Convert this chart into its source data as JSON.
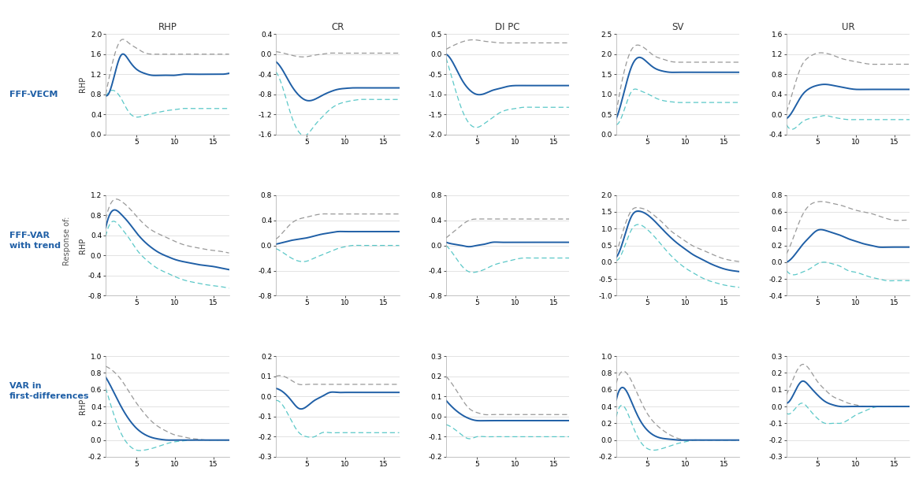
{
  "col_headers": [
    "RHP",
    "CR",
    "DI PC",
    "SV",
    "UR"
  ],
  "colors": {
    "blue": "#1f5fa6",
    "gray_dashed": "#999999",
    "cyan_dashed": "#5bc8c8"
  },
  "panels": {
    "r0c0": {
      "ylim": [
        0.0,
        2.0
      ],
      "yticks": [
        0.0,
        0.4,
        0.8,
        1.2,
        1.6,
        2.0
      ],
      "blue": [
        0.78,
        1.1,
        1.58,
        1.48,
        1.3,
        1.22,
        1.18,
        1.18,
        1.18,
        1.18,
        1.2,
        1.2,
        1.2,
        1.2,
        1.2,
        1.2,
        1.22
      ],
      "upper": [
        0.8,
        1.5,
        1.88,
        1.82,
        1.72,
        1.63,
        1.6,
        1.6,
        1.6,
        1.6,
        1.6,
        1.6,
        1.6,
        1.6,
        1.6,
        1.6,
        1.6
      ],
      "lower": [
        0.75,
        0.88,
        0.72,
        0.45,
        0.35,
        0.38,
        0.42,
        0.45,
        0.48,
        0.5,
        0.52,
        0.52,
        0.52,
        0.52,
        0.52,
        0.52,
        0.52
      ]
    },
    "r0c1": {
      "ylim": [
        -1.6,
        0.4
      ],
      "yticks": [
        -1.6,
        -1.2,
        -0.8,
        -0.4,
        0.0,
        0.4
      ],
      "blue": [
        -0.15,
        -0.35,
        -0.62,
        -0.82,
        -0.92,
        -0.9,
        -0.82,
        -0.75,
        -0.7,
        -0.68,
        -0.67,
        -0.67,
        -0.67,
        -0.67,
        -0.67,
        -0.67,
        -0.67
      ],
      "upper": [
        0.05,
        0.02,
        -0.02,
        -0.05,
        -0.05,
        -0.02,
        0.0,
        0.02,
        0.02,
        0.02,
        0.02,
        0.02,
        0.02,
        0.02,
        0.02,
        0.02,
        0.02
      ],
      "lower": [
        -0.35,
        -0.72,
        -1.22,
        -1.55,
        -1.6,
        -1.42,
        -1.25,
        -1.1,
        -1.0,
        -0.95,
        -0.92,
        -0.9,
        -0.9,
        -0.9,
        -0.9,
        -0.9,
        -0.9
      ]
    },
    "r0c2": {
      "ylim": [
        -2.0,
        0.5
      ],
      "yticks": [
        -2.0,
        -1.5,
        -1.0,
        -0.5,
        0.0,
        0.5
      ],
      "blue": [
        0.0,
        -0.25,
        -0.62,
        -0.88,
        -1.0,
        -0.98,
        -0.9,
        -0.85,
        -0.8,
        -0.78,
        -0.78,
        -0.78,
        -0.78,
        -0.78,
        -0.78,
        -0.78,
        -0.78
      ],
      "upper": [
        0.12,
        0.22,
        0.3,
        0.35,
        0.35,
        0.32,
        0.3,
        0.28,
        0.28,
        0.28,
        0.28,
        0.28,
        0.28,
        0.28,
        0.28,
        0.28,
        0.28
      ],
      "lower": [
        -0.1,
        -0.75,
        -1.35,
        -1.72,
        -1.82,
        -1.72,
        -1.58,
        -1.45,
        -1.38,
        -1.35,
        -1.32,
        -1.32,
        -1.32,
        -1.32,
        -1.32,
        -1.32,
        -1.32
      ]
    },
    "r0c3": {
      "ylim": [
        0.0,
        2.5
      ],
      "yticks": [
        0.0,
        0.5,
        1.0,
        1.5,
        2.0,
        2.5
      ],
      "blue": [
        0.4,
        1.05,
        1.7,
        1.92,
        1.8,
        1.65,
        1.58,
        1.55,
        1.55,
        1.55,
        1.55,
        1.55,
        1.55,
        1.55,
        1.55,
        1.55,
        1.55
      ],
      "upper": [
        0.55,
        1.55,
        2.12,
        2.22,
        2.1,
        1.95,
        1.88,
        1.82,
        1.8,
        1.8,
        1.8,
        1.8,
        1.8,
        1.8,
        1.8,
        1.8,
        1.8
      ],
      "lower": [
        0.25,
        0.6,
        1.08,
        1.1,
        1.02,
        0.92,
        0.85,
        0.82,
        0.8,
        0.8,
        0.8,
        0.8,
        0.8,
        0.8,
        0.8,
        0.8,
        0.8
      ]
    },
    "r0c4": {
      "ylim": [
        -0.4,
        1.6
      ],
      "yticks": [
        -0.4,
        0.0,
        0.4,
        0.8,
        1.2,
        1.6
      ],
      "blue": [
        -0.08,
        0.12,
        0.38,
        0.52,
        0.58,
        0.6,
        0.58,
        0.55,
        0.52,
        0.5,
        0.5,
        0.5,
        0.5,
        0.5,
        0.5,
        0.5,
        0.5
      ],
      "upper": [
        0.05,
        0.55,
        0.98,
        1.15,
        1.22,
        1.22,
        1.18,
        1.12,
        1.08,
        1.05,
        1.02,
        1.0,
        1.0,
        1.0,
        1.0,
        1.0,
        1.0
      ],
      "lower": [
        -0.2,
        -0.28,
        -0.15,
        -0.08,
        -0.05,
        -0.02,
        -0.05,
        -0.08,
        -0.1,
        -0.1,
        -0.1,
        -0.1,
        -0.1,
        -0.1,
        -0.1,
        -0.1,
        -0.1
      ]
    },
    "r1c0": {
      "ylim": [
        -0.8,
        1.2
      ],
      "yticks": [
        -0.8,
        -0.4,
        0.0,
        0.4,
        0.8,
        1.2
      ],
      "blue": [
        0.55,
        0.9,
        0.82,
        0.65,
        0.45,
        0.28,
        0.15,
        0.05,
        -0.02,
        -0.08,
        -0.12,
        -0.15,
        -0.18,
        -0.2,
        -0.22,
        -0.25,
        -0.28
      ],
      "upper": [
        0.72,
        1.1,
        1.08,
        0.95,
        0.78,
        0.62,
        0.5,
        0.42,
        0.35,
        0.28,
        0.22,
        0.18,
        0.15,
        0.12,
        0.1,
        0.08,
        0.05
      ],
      "lower": [
        0.38,
        0.68,
        0.55,
        0.35,
        0.12,
        -0.05,
        -0.18,
        -0.28,
        -0.35,
        -0.42,
        -0.48,
        -0.52,
        -0.55,
        -0.58,
        -0.6,
        -0.62,
        -0.65
      ]
    },
    "r1c1": {
      "ylim": [
        -0.8,
        0.8
      ],
      "yticks": [
        -0.8,
        -0.4,
        0.0,
        0.4,
        0.8
      ],
      "blue": [
        0.02,
        0.05,
        0.08,
        0.1,
        0.12,
        0.15,
        0.18,
        0.2,
        0.22,
        0.22,
        0.22,
        0.22,
        0.22,
        0.22,
        0.22,
        0.22,
        0.22
      ],
      "upper": [
        0.1,
        0.22,
        0.35,
        0.42,
        0.45,
        0.48,
        0.5,
        0.5,
        0.5,
        0.5,
        0.5,
        0.5,
        0.5,
        0.5,
        0.5,
        0.5,
        0.5
      ],
      "lower": [
        -0.05,
        -0.12,
        -0.2,
        -0.25,
        -0.25,
        -0.2,
        -0.15,
        -0.1,
        -0.05,
        -0.02,
        0.0,
        0.0,
        0.0,
        0.0,
        0.0,
        0.0,
        0.0
      ]
    },
    "r1c2": {
      "ylim": [
        -0.8,
        0.8
      ],
      "yticks": [
        -0.8,
        -0.4,
        0.0,
        0.4,
        0.8
      ],
      "blue": [
        0.05,
        0.02,
        0.0,
        -0.02,
        0.0,
        0.02,
        0.05,
        0.05,
        0.05,
        0.05,
        0.05,
        0.05,
        0.05,
        0.05,
        0.05,
        0.05,
        0.05
      ],
      "upper": [
        0.12,
        0.22,
        0.32,
        0.4,
        0.42,
        0.42,
        0.42,
        0.42,
        0.42,
        0.42,
        0.42,
        0.42,
        0.42,
        0.42,
        0.42,
        0.42,
        0.42
      ],
      "lower": [
        0.0,
        -0.15,
        -0.32,
        -0.42,
        -0.42,
        -0.38,
        -0.32,
        -0.28,
        -0.25,
        -0.22,
        -0.2,
        -0.2,
        -0.2,
        -0.2,
        -0.2,
        -0.2,
        -0.2
      ]
    },
    "r1c3": {
      "ylim": [
        -1.0,
        2.0
      ],
      "yticks": [
        -1.0,
        -0.5,
        0.0,
        0.5,
        1.0,
        1.5,
        2.0
      ],
      "blue": [
        0.15,
        0.72,
        1.38,
        1.52,
        1.42,
        1.22,
        0.98,
        0.75,
        0.55,
        0.38,
        0.22,
        0.1,
        -0.02,
        -0.12,
        -0.2,
        -0.25,
        -0.28
      ],
      "upper": [
        0.25,
        1.02,
        1.55,
        1.62,
        1.55,
        1.38,
        1.18,
        0.95,
        0.78,
        0.62,
        0.48,
        0.38,
        0.28,
        0.18,
        0.1,
        0.05,
        0.02
      ],
      "lower": [
        0.05,
        0.42,
        0.98,
        1.12,
        0.98,
        0.75,
        0.48,
        0.22,
        0.0,
        -0.18,
        -0.32,
        -0.45,
        -0.55,
        -0.62,
        -0.68,
        -0.72,
        -0.75
      ]
    },
    "r1c4": {
      "ylim": [
        -0.4,
        0.8
      ],
      "yticks": [
        -0.4,
        -0.2,
        0.0,
        0.2,
        0.4,
        0.6,
        0.8
      ],
      "blue": [
        0.0,
        0.08,
        0.2,
        0.3,
        0.38,
        0.38,
        0.35,
        0.32,
        0.28,
        0.25,
        0.22,
        0.2,
        0.18,
        0.18,
        0.18,
        0.18,
        0.18
      ],
      "upper": [
        0.1,
        0.32,
        0.55,
        0.68,
        0.72,
        0.72,
        0.7,
        0.68,
        0.65,
        0.62,
        0.6,
        0.58,
        0.55,
        0.52,
        0.5,
        0.5,
        0.5
      ],
      "lower": [
        -0.1,
        -0.15,
        -0.12,
        -0.08,
        -0.02,
        0.0,
        -0.02,
        -0.05,
        -0.1,
        -0.12,
        -0.15,
        -0.18,
        -0.2,
        -0.22,
        -0.22,
        -0.22,
        -0.22
      ]
    },
    "r2c0": {
      "ylim": [
        -0.2,
        1.0
      ],
      "yticks": [
        -0.2,
        0.0,
        0.2,
        0.4,
        0.6,
        0.8,
        1.0
      ],
      "blue": [
        0.75,
        0.58,
        0.4,
        0.25,
        0.14,
        0.07,
        0.03,
        0.01,
        0.0,
        0.0,
        0.0,
        0.0,
        0.0,
        0.0,
        0.0,
        0.0,
        0.0
      ],
      "upper": [
        0.88,
        0.82,
        0.72,
        0.58,
        0.44,
        0.32,
        0.22,
        0.15,
        0.1,
        0.06,
        0.04,
        0.02,
        0.01,
        0.0,
        0.0,
        0.0,
        0.0
      ],
      "lower": [
        0.62,
        0.32,
        0.08,
        -0.06,
        -0.12,
        -0.12,
        -0.1,
        -0.07,
        -0.04,
        -0.02,
        -0.01,
        0.0,
        0.0,
        0.0,
        0.0,
        0.0,
        0.0
      ]
    },
    "r2c1": {
      "ylim": [
        -0.3,
        0.2
      ],
      "yticks": [
        -0.3,
        -0.2,
        -0.1,
        0.0,
        0.1,
        0.2
      ],
      "blue": [
        0.04,
        0.02,
        -0.02,
        -0.06,
        -0.05,
        -0.02,
        0.0,
        0.02,
        0.02,
        0.02,
        0.02,
        0.02,
        0.02,
        0.02,
        0.02,
        0.02,
        0.02
      ],
      "upper": [
        0.1,
        0.1,
        0.08,
        0.06,
        0.06,
        0.06,
        0.06,
        0.06,
        0.06,
        0.06,
        0.06,
        0.06,
        0.06,
        0.06,
        0.06,
        0.06,
        0.06
      ],
      "lower": [
        -0.02,
        -0.05,
        -0.12,
        -0.18,
        -0.2,
        -0.2,
        -0.18,
        -0.18,
        -0.18,
        -0.18,
        -0.18,
        -0.18,
        -0.18,
        -0.18,
        -0.18,
        -0.18,
        -0.18
      ]
    },
    "r2c2": {
      "ylim": [
        -0.2,
        0.3
      ],
      "yticks": [
        -0.2,
        -0.1,
        0.0,
        0.1,
        0.2,
        0.3
      ],
      "blue": [
        0.08,
        0.04,
        0.01,
        -0.01,
        -0.02,
        -0.02,
        -0.02,
        -0.02,
        -0.02,
        -0.02,
        -0.02,
        -0.02,
        -0.02,
        -0.02,
        -0.02,
        -0.02,
        -0.02
      ],
      "upper": [
        0.2,
        0.15,
        0.09,
        0.04,
        0.02,
        0.01,
        0.01,
        0.01,
        0.01,
        0.01,
        0.01,
        0.01,
        0.01,
        0.01,
        0.01,
        0.01,
        0.01
      ],
      "lower": [
        -0.04,
        -0.06,
        -0.09,
        -0.11,
        -0.1,
        -0.1,
        -0.1,
        -0.1,
        -0.1,
        -0.1,
        -0.1,
        -0.1,
        -0.1,
        -0.1,
        -0.1,
        -0.1,
        -0.1
      ]
    },
    "r2c3": {
      "ylim": [
        -0.2,
        1.0
      ],
      "yticks": [
        -0.2,
        0.0,
        0.2,
        0.4,
        0.6,
        0.8,
        1.0
      ],
      "blue": [
        0.48,
        0.62,
        0.45,
        0.25,
        0.12,
        0.05,
        0.02,
        0.01,
        0.0,
        0.0,
        0.0,
        0.0,
        0.0,
        0.0,
        0.0,
        0.0,
        0.0
      ],
      "upper": [
        0.68,
        0.82,
        0.7,
        0.5,
        0.32,
        0.2,
        0.12,
        0.06,
        0.02,
        0.0,
        0.0,
        0.0,
        0.0,
        0.0,
        0.0,
        0.0,
        0.0
      ],
      "lower": [
        0.28,
        0.4,
        0.2,
        0.0,
        -0.1,
        -0.12,
        -0.1,
        -0.07,
        -0.04,
        -0.02,
        0.0,
        0.0,
        0.0,
        0.0,
        0.0,
        0.0,
        0.0
      ]
    },
    "r2c4": {
      "ylim": [
        -0.3,
        0.3
      ],
      "yticks": [
        -0.3,
        -0.2,
        -0.1,
        0.0,
        0.1,
        0.2,
        0.3
      ],
      "blue": [
        0.02,
        0.08,
        0.15,
        0.12,
        0.07,
        0.03,
        0.01,
        0.0,
        0.0,
        0.0,
        0.0,
        0.0,
        0.0,
        0.0,
        0.0,
        0.0,
        0.0
      ],
      "upper": [
        0.07,
        0.18,
        0.25,
        0.22,
        0.15,
        0.1,
        0.06,
        0.04,
        0.02,
        0.01,
        0.0,
        0.0,
        0.0,
        0.0,
        0.0,
        0.0,
        0.0
      ],
      "lower": [
        -0.04,
        -0.02,
        0.02,
        -0.02,
        -0.07,
        -0.1,
        -0.1,
        -0.1,
        -0.08,
        -0.05,
        -0.03,
        -0.01,
        0.0,
        0.0,
        0.0,
        0.0,
        0.0
      ]
    }
  }
}
